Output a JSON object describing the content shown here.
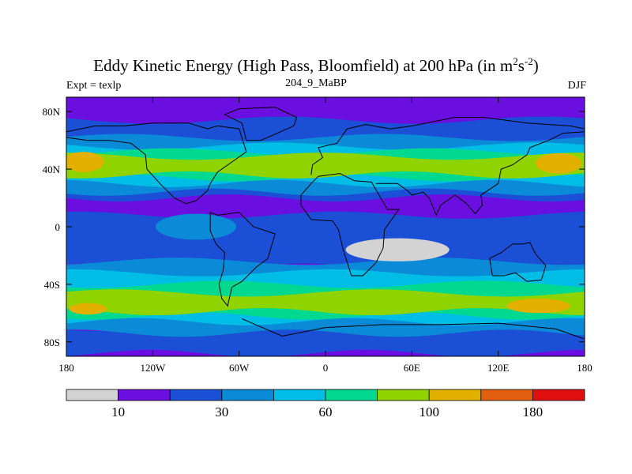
{
  "chart_data": {
    "type": "heatmap",
    "title_main": "Eddy Kinetic Energy (High Pass, Bloomfield) at 200 hPa (in m",
    "title_sup1": "2",
    "title_mid": "s",
    "title_sup2": "-2",
    "title_end": ")",
    "subtitle_left": "Expt = texlp",
    "subtitle_center": "204_9_MaBP",
    "subtitle_right": "DJF",
    "x_range": [
      -180,
      180
    ],
    "y_range": [
      -90,
      90
    ],
    "x_ticks": [
      {
        "value": -180,
        "label": "180"
      },
      {
        "value": -120,
        "label": "120W"
      },
      {
        "value": -60,
        "label": "60W"
      },
      {
        "value": 0,
        "label": "0"
      },
      {
        "value": 60,
        "label": "60E"
      },
      {
        "value": 120,
        "label": "120E"
      },
      {
        "value": 180,
        "label": "180"
      }
    ],
    "y_ticks": [
      {
        "value": 80,
        "label": "80N"
      },
      {
        "value": 40,
        "label": "40N"
      },
      {
        "value": 0,
        "label": "0"
      },
      {
        "value": -40,
        "label": "40S"
      },
      {
        "value": -80,
        "label": "80S"
      }
    ],
    "colorbar": {
      "colors": [
        "#d3d3d3",
        "#6a0fe0",
        "#1a4fd6",
        "#0b8ad8",
        "#00bde6",
        "#00d98f",
        "#8fd400",
        "#e3b000",
        "#e06010",
        "#e01010"
      ],
      "tick_labels": [
        "10",
        "30",
        "60",
        "100",
        "180"
      ],
      "tick_after_box": [
        1,
        3,
        5,
        7,
        9
      ]
    },
    "bands": [
      {
        "level": 1,
        "lat": [
          -90,
          90
        ]
      },
      {
        "level": 2,
        "lat": [
          -28,
          8
        ]
      },
      {
        "level": 2,
        "lat": [
          20,
          74
        ]
      },
      {
        "level": 2,
        "lat": [
          -88,
          -70
        ]
      },
      {
        "level": 3,
        "lat": [
          -74,
          -24
        ]
      },
      {
        "level": 3,
        "lat": [
          24,
          62
        ]
      },
      {
        "level": 4,
        "lat": [
          -66,
          -32
        ]
      },
      {
        "level": 4,
        "lat": [
          30,
          56
        ]
      },
      {
        "level": 5,
        "lat": [
          -62,
          -40
        ]
      },
      {
        "level": 5,
        "lat": [
          34,
          52
        ]
      },
      {
        "level": 6,
        "lat": [
          -59,
          -46
        ]
      },
      {
        "level": 6,
        "lat": [
          36,
          49
        ]
      }
    ],
    "regions": [
      {
        "level": 3,
        "lon_center": -90,
        "lat_center": 0,
        "lon_half": 28,
        "lat_half": 9
      },
      {
        "level": 7,
        "lon_center": -168,
        "lat_center": 45,
        "lon_half": 14,
        "lat_half": 7
      },
      {
        "level": 7,
        "lon_center": 162,
        "lat_center": 44,
        "lon_half": 16,
        "lat_half": 7
      },
      {
        "level": 7,
        "lon_center": -165,
        "lat_center": -57,
        "lon_half": 13,
        "lat_half": 4
      },
      {
        "level": 7,
        "lon_center": 148,
        "lat_center": -55,
        "lon_half": 22,
        "lat_half": 5
      },
      {
        "level": 0,
        "lon_center": 50,
        "lat_center": -16,
        "lon_half": 36,
        "lat_half": 8
      }
    ]
  }
}
